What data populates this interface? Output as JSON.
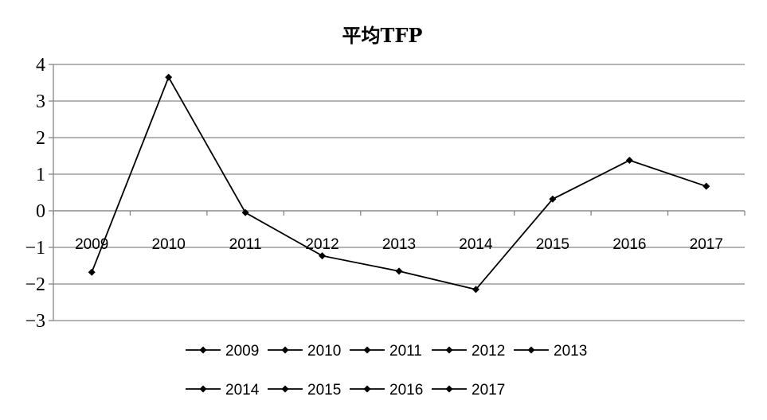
{
  "chart_data": {
    "type": "line",
    "title": "平均TFP",
    "categories": [
      "2009",
      "2010",
      "2011",
      "2012",
      "2013",
      "2014",
      "2015",
      "2016",
      "2017"
    ],
    "values": [
      -1.68,
      3.65,
      -0.05,
      -1.23,
      -1.65,
      -2.15,
      0.32,
      1.38,
      0.67
    ],
    "ylim": [
      -3,
      4
    ],
    "yticks": [
      4,
      3,
      2,
      1,
      0,
      -1,
      -2,
      -3
    ],
    "ytick_labels": [
      "4",
      "3",
      "2",
      "1",
      "0",
      "−1",
      "−2",
      "−3"
    ],
    "grid": true,
    "legend": {
      "placement": "bottom",
      "entries": [
        "2009",
        "2010",
        "2011",
        "2012",
        "2013",
        "2014",
        "2015",
        "2016",
        "2017"
      ]
    },
    "colors": {
      "line": "#000000",
      "grid": "#868686",
      "axis": "#868686"
    }
  }
}
